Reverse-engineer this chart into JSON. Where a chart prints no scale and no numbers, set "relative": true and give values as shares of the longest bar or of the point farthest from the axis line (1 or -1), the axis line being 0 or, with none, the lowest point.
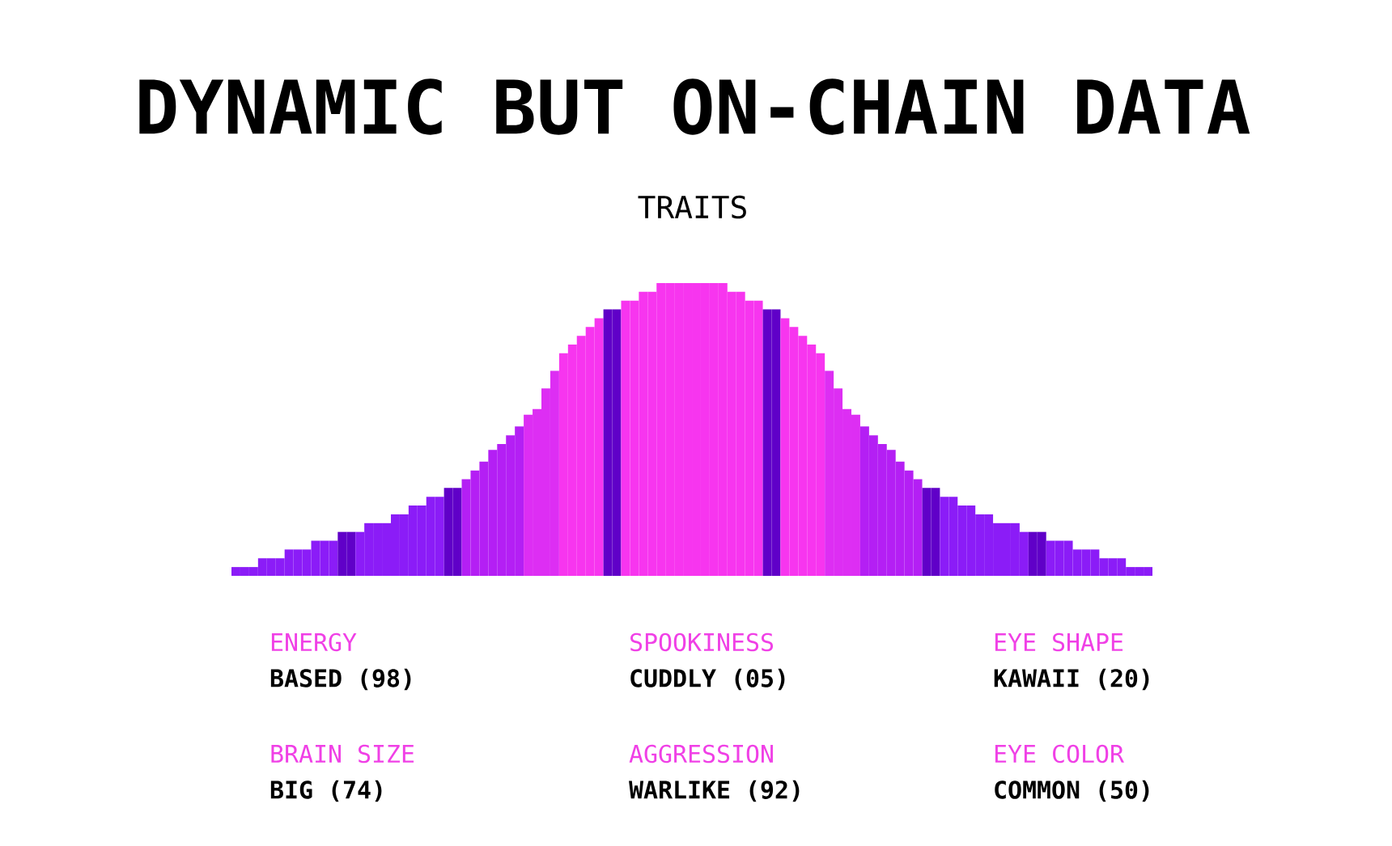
{
  "chart_data": [
    {
      "type": "bar",
      "title": "DYNAMIC BUT ON-CHAIN DATA",
      "subtitle": "TRAITS",
      "relative": true,
      "categories": [
        null,
        null,
        null,
        null,
        null,
        null,
        null,
        null,
        null,
        null,
        null,
        null,
        null,
        null,
        null,
        null,
        null,
        null,
        null,
        null,
        null,
        null,
        null,
        null,
        null,
        null,
        null,
        null,
        null,
        null,
        null,
        null,
        null,
        null,
        null,
        null,
        null,
        null,
        null,
        null,
        null,
        null,
        null,
        null,
        null,
        null,
        null,
        null,
        null,
        null,
        null,
        null,
        null,
        null,
        null,
        null,
        null,
        null,
        null,
        null,
        null,
        null,
        null,
        null,
        null,
        null,
        null,
        null,
        null,
        null,
        null,
        null,
        null,
        null,
        null,
        null,
        null,
        null,
        null,
        null,
        null,
        null,
        null,
        null,
        null,
        null,
        null,
        null,
        null,
        null,
        null,
        null,
        null,
        null,
        null,
        null,
        null,
        null,
        null,
        null,
        null,
        null,
        null,
        null
      ],
      "values": [
        0.03,
        0.03,
        0.03,
        0.06,
        0.06,
        0.06,
        0.09,
        0.09,
        0.09,
        0.12,
        0.12,
        0.12,
        0.15,
        0.15,
        0.15,
        0.18,
        0.18,
        0.18,
        0.21,
        0.21,
        0.24,
        0.24,
        0.27,
        0.27,
        0.3,
        0.3,
        0.33,
        0.36,
        0.39,
        0.43,
        0.45,
        0.48,
        0.51,
        0.55,
        0.57,
        0.64,
        0.7,
        0.76,
        0.79,
        0.82,
        0.85,
        0.88,
        0.91,
        0.91,
        0.94,
        0.94,
        0.97,
        0.97,
        1,
        1,
        1,
        1,
        1,
        1,
        1,
        1,
        0.97,
        0.97,
        0.94,
        0.94,
        0.91,
        0.91,
        0.88,
        0.85,
        0.82,
        0.79,
        0.76,
        0.7,
        0.64,
        0.57,
        0.55,
        0.51,
        0.48,
        0.45,
        0.43,
        0.39,
        0.36,
        0.33,
        0.3,
        0.3,
        0.27,
        0.27,
        0.24,
        0.24,
        0.21,
        0.21,
        0.18,
        0.18,
        0.18,
        0.15,
        0.15,
        0.15,
        0.12,
        0.12,
        0.12,
        0.09,
        0.09,
        0.09,
        0.06,
        0.06,
        0.06,
        0.03,
        0.03,
        0.03
      ],
      "colors": [
        "#8b1cf7",
        "#8b1cf7",
        "#8b1cf7",
        "#8b1cf7",
        "#8b1cf7",
        "#8b1cf7",
        "#8b1cf7",
        "#8b1cf7",
        "#8b1cf7",
        "#8b1cf7",
        "#8b1cf7",
        "#8b1cf7",
        "#6000c8",
        "#6000c8",
        "#8b1cf7",
        "#8b1cf7",
        "#8b1cf7",
        "#8b1cf7",
        "#8b1cf7",
        "#8b1cf7",
        "#8b1cf7",
        "#8b1cf7",
        "#8b1cf7",
        "#8b1cf7",
        "#6000c8",
        "#6000c8",
        "#b41ff4",
        "#b41ff4",
        "#b41ff4",
        "#b41ff4",
        "#b41ff4",
        "#b41ff4",
        "#b41ff4",
        "#dd2ef3",
        "#dd2ef3",
        "#dd2ef3",
        "#dd2ef3",
        "#f735ef",
        "#f735ef",
        "#f735ef",
        "#f735ef",
        "#f735ef",
        "#6000c8",
        "#6000c8",
        "#f735ef",
        "#f735ef",
        "#f735ef",
        "#f735ef",
        "#f735ef",
        "#f735ef",
        "#f735ef",
        "#f735ef",
        "#f735ef",
        "#f735ef",
        "#f735ef",
        "#f735ef",
        "#f735ef",
        "#f735ef",
        "#f735ef",
        "#f735ef",
        "#6000c8",
        "#6000c8",
        "#f735ef",
        "#f735ef",
        "#f735ef",
        "#f735ef",
        "#f735ef",
        "#dd2ef3",
        "#dd2ef3",
        "#dd2ef3",
        "#dd2ef3",
        "#b41ff4",
        "#b41ff4",
        "#b41ff4",
        "#b41ff4",
        "#b41ff4",
        "#b41ff4",
        "#b41ff4",
        "#6000c8",
        "#6000c8",
        "#8b1cf7",
        "#8b1cf7",
        "#8b1cf7",
        "#8b1cf7",
        "#8b1cf7",
        "#8b1cf7",
        "#8b1cf7",
        "#8b1cf7",
        "#8b1cf7",
        "#8b1cf7",
        "#6000c8",
        "#6000c8",
        "#8b1cf7",
        "#8b1cf7",
        "#8b1cf7",
        "#8b1cf7",
        "#8b1cf7",
        "#8b1cf7",
        "#8b1cf7",
        "#8b1cf7",
        "#8b1cf7",
        "#8b1cf7",
        "#8b1cf7",
        "#8b1cf7"
      ]
    },
    {
      "type": "other",
      "annotations": [
        "ENERGY",
        "BASED (98)",
        "SPOOKINESS",
        "CUDDLY (05)",
        "EYE SHAPE",
        "KAWAII (20)",
        "BRAIN SIZE",
        "BIG (74)",
        "AGGRESSION",
        "WARLIKE (92)",
        "EYE COLOR",
        "COMMON (50)"
      ]
    }
  ]
}
